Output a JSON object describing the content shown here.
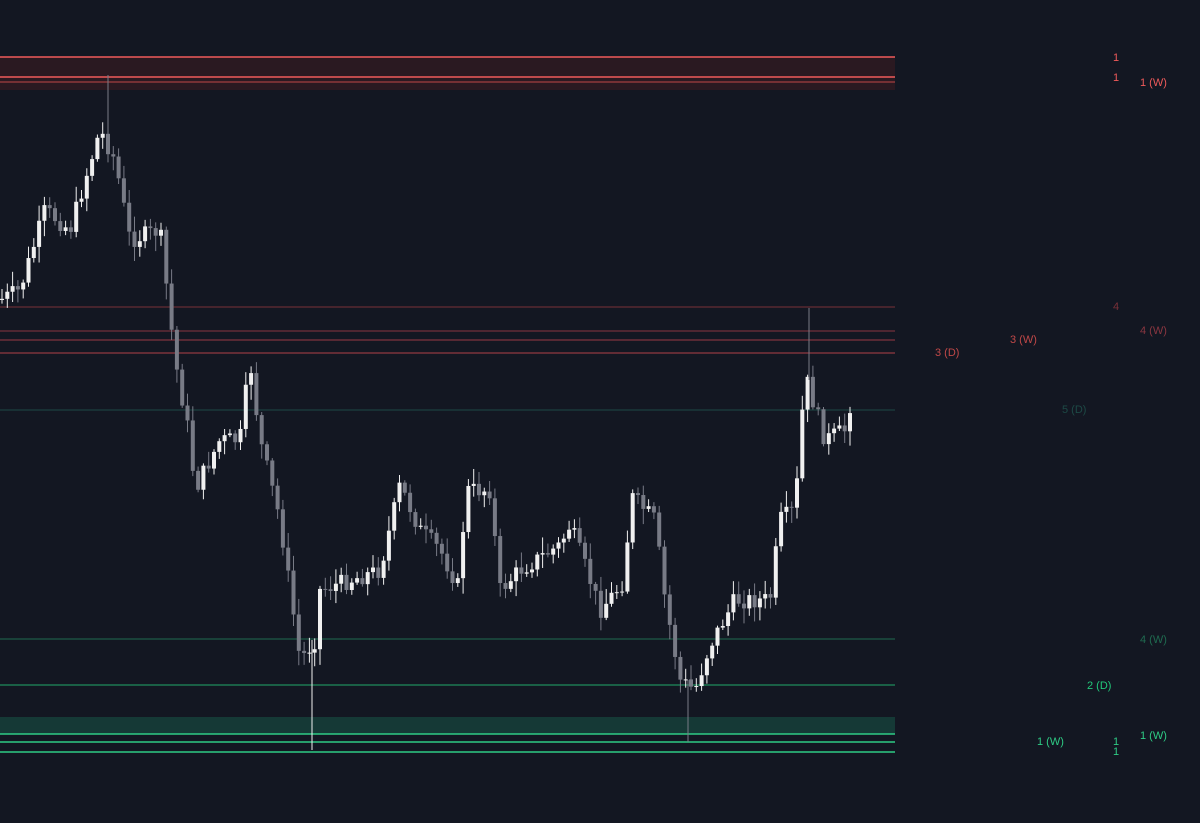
{
  "chart_data": {
    "type": "candlestick",
    "level_labels": [
      "1",
      "1",
      "1 (W)",
      "4",
      "4 (W)",
      "3 (W)",
      "3 (D)",
      "5 (D)",
      "4 (W)",
      "2 (D)",
      "1 (W)",
      "1 (W)",
      "1",
      "1"
    ]
  }
}
